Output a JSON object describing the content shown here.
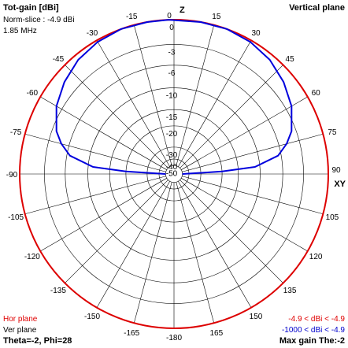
{
  "header": {
    "title": "Tot-gain [dBi]",
    "norm_slice": "Norm-slice : -4.9 dBi",
    "frequency": "1.85 MHz",
    "plane": "Vertical plane"
  },
  "axis_labels": {
    "top": "Z",
    "right": "XY"
  },
  "angle_labels": [
    "0",
    "15",
    "30",
    "45",
    "60",
    "75",
    "90",
    "105",
    "120",
    "135",
    "150",
    "165",
    "-180",
    "-165",
    "-150",
    "-135",
    "-120",
    "-105",
    "-90",
    "-75",
    "-60",
    "-45",
    "-30",
    "-15"
  ],
  "ring_labels": [
    "0",
    "-3",
    "-6",
    "-10",
    "-15",
    "-20",
    "-30",
    "-40",
    "-50"
  ],
  "footer": {
    "hor_plane": "Hor plane",
    "ver_plane": "Ver plane",
    "cursor": "Theta=-2, Phi=28",
    "hor_range": "-4.9 < dBi < -4.9",
    "ver_range": "-1000 < dBi < -4.9",
    "max_gain": "Max gain The:-2"
  },
  "colors": {
    "outer_circle": "#dd0000",
    "pattern": "#0000dd",
    "grid": "#000000"
  },
  "chart_data": {
    "type": "polar",
    "unit": "dBi",
    "ring_values_db": [
      0,
      -3,
      -6,
      -10,
      -15,
      -20,
      -30,
      -40,
      -50
    ],
    "angle_step_deg": 15,
    "series": [
      {
        "name": "Ver plane",
        "theta_deg": [
          -90,
          -87,
          -85,
          -80,
          -75,
          -70,
          -60,
          -50,
          -40,
          -30,
          -20,
          -10,
          -2,
          10,
          20,
          30,
          40,
          50,
          60,
          70,
          75,
          80,
          85,
          87,
          90
        ],
        "gain_db": [
          -50,
          -20,
          -11,
          -6.5,
          -4.8,
          -3.6,
          -2.2,
          -1.3,
          -0.6,
          -0.2,
          0,
          0,
          0,
          0,
          0,
          -0.2,
          -0.6,
          -1.3,
          -2.2,
          -3.6,
          -4.8,
          -6.5,
          -11,
          -20,
          -50
        ]
      }
    ]
  }
}
